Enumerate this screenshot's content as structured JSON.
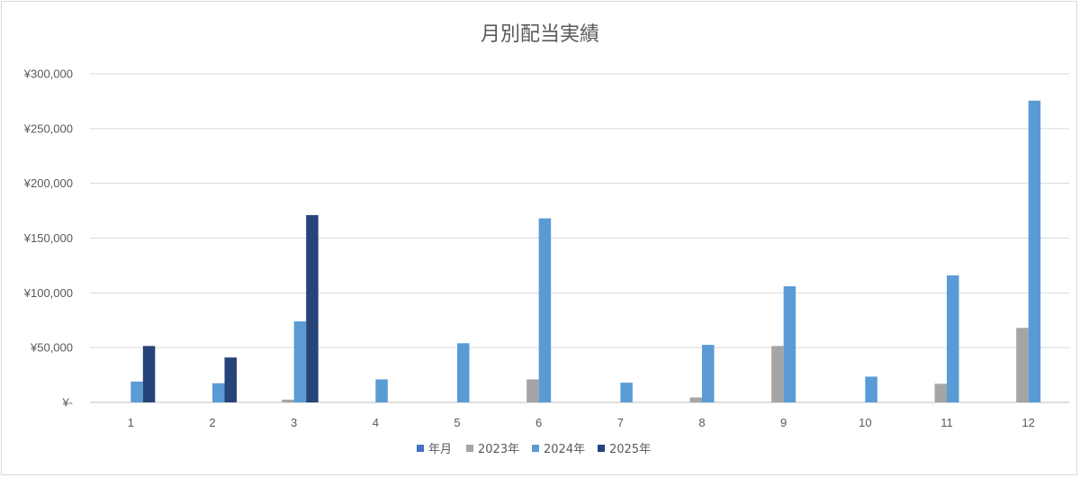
{
  "chart_data": {
    "type": "bar",
    "title": "月別配当実績",
    "xlabel": "",
    "ylabel": "",
    "categories": [
      "1",
      "2",
      "3",
      "4",
      "5",
      "6",
      "7",
      "8",
      "9",
      "10",
      "11",
      "12"
    ],
    "ylim": [
      0,
      300000
    ],
    "yticks": [
      0,
      50000,
      100000,
      150000,
      200000,
      250000,
      300000
    ],
    "ytick_labels": [
      "¥-",
      "¥50,000",
      "¥100,000",
      "¥150,000",
      "¥200,000",
      "¥250,000",
      "¥300,000"
    ],
    "grid": true,
    "legend_position": "bottom",
    "series": [
      {
        "name": "年月",
        "color": "#4472C4",
        "values": [
          0,
          0,
          0,
          0,
          0,
          0,
          0,
          0,
          0,
          0,
          0,
          0
        ]
      },
      {
        "name": "2023年",
        "color": "#A5A5A5",
        "values": [
          0,
          0,
          2500,
          0,
          0,
          21000,
          0,
          4500,
          51500,
          0,
          17000,
          68000
        ]
      },
      {
        "name": "2024年",
        "color": "#5B9BD5",
        "values": [
          19000,
          17500,
          74000,
          21000,
          54000,
          168000,
          18000,
          52500,
          106000,
          23500,
          116000,
          275500
        ]
      },
      {
        "name": "2025年",
        "color": "#264478",
        "values": [
          51500,
          41000,
          171000,
          0,
          0,
          0,
          0,
          0,
          0,
          0,
          0,
          0
        ]
      }
    ]
  }
}
